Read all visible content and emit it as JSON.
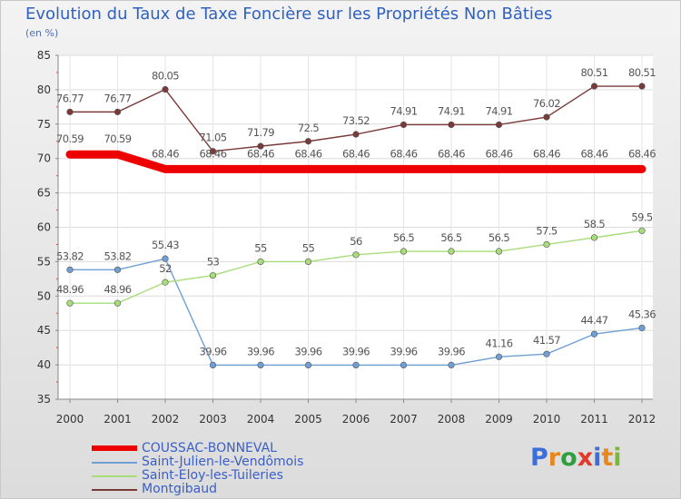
{
  "title": "Evolution du Taux de Taxe Foncière sur les Propriétés Non Bâties",
  "subtitle": "(en %)",
  "logo": {
    "text": "Proxiti",
    "colors": [
      "#3a6ed8",
      "#e8871e",
      "#2e9e3e",
      "#e23a2a",
      "#3a6ed8",
      "#e8871e",
      "#7ab83a"
    ]
  },
  "chart_data": {
    "type": "line",
    "title": "Evolution du Taux de Taxe Foncière sur les Propriétés Non Bâties",
    "ylabel": "(en %)",
    "xlabel": "",
    "ylim": [
      35,
      85
    ],
    "yticks": [
      35,
      40,
      45,
      50,
      55,
      60,
      65,
      70,
      75,
      80,
      85
    ],
    "x": [
      "2000",
      "2001",
      "2002",
      "2003",
      "2004",
      "2005",
      "2006",
      "2007",
      "2008",
      "2009",
      "2010",
      "2011",
      "2012"
    ],
    "grid": true,
    "legend": "bottom-left",
    "series": [
      {
        "name": "COUSSAC-BONNEVAL",
        "color": "#ee0000",
        "values": [
          70.59,
          70.59,
          68.46,
          68.46,
          68.46,
          68.46,
          68.46,
          68.46,
          68.46,
          68.46,
          68.46,
          68.46,
          68.46
        ],
        "labels": [
          "70.59",
          "70.59",
          "68.46",
          "68.46",
          "68.46",
          "68.46",
          "68.46",
          "68.46",
          "68.46",
          "68.46",
          "68.46",
          "68.46",
          "68.46"
        ]
      },
      {
        "name": "Saint-Julien-le-Vendômois",
        "color": "#6f9fd4",
        "values": [
          53.82,
          53.82,
          55.43,
          39.96,
          39.96,
          39.96,
          39.96,
          39.96,
          39.96,
          41.16,
          41.57,
          44.47,
          45.36
        ],
        "labels": [
          "53.82",
          "53.82",
          "55.43",
          "39.96",
          "39.96",
          "39.96",
          "39.96",
          "39.96",
          "39.96",
          "41.16",
          "41.57",
          "44.47",
          "45.36"
        ]
      },
      {
        "name": "Saint-Eloy-les-Tuileries",
        "color": "#a8dd7a",
        "values": [
          48.96,
          48.96,
          52,
          53,
          55,
          55,
          56,
          56.5,
          56.5,
          56.5,
          57.5,
          58.5,
          59.5
        ],
        "labels": [
          "48.96",
          "48.96",
          "52",
          "53",
          "55",
          "55",
          "56",
          "56.5",
          "56.5",
          "56.5",
          "57.5",
          "58.5",
          "59.5"
        ]
      },
      {
        "name": "Montgibaud",
        "color": "#7b3a3a",
        "values": [
          76.77,
          76.77,
          80.05,
          71.05,
          71.79,
          72.5,
          73.52,
          74.91,
          74.91,
          74.91,
          76.02,
          80.51,
          80.51
        ],
        "labels": [
          "76.77",
          "76.77",
          "80.05",
          "71.05",
          "71.79",
          "72.5",
          "73.52",
          "74.91",
          "74.91",
          "74.91",
          "76.02",
          "80.51",
          "80.51"
        ]
      }
    ]
  }
}
